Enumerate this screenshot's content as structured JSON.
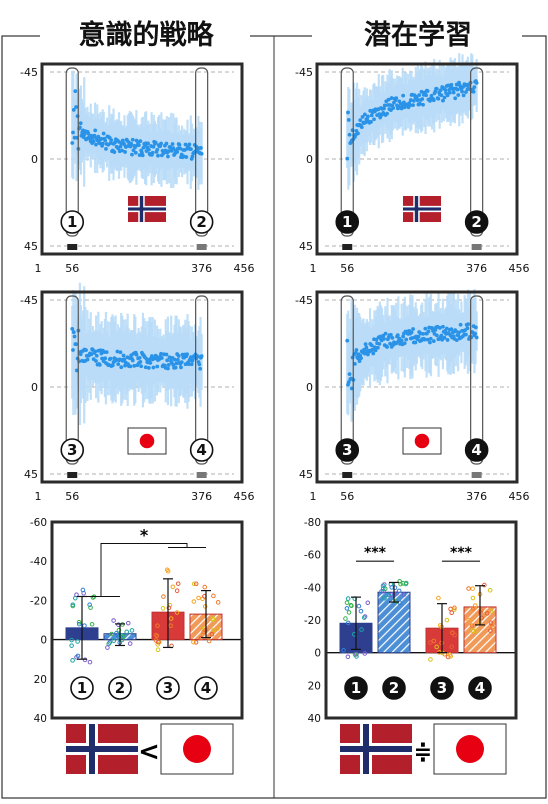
{
  "panels": {
    "left_title": "意識的戦略",
    "right_title": "潜在学習"
  },
  "colors": {
    "dot": "#2a93e8",
    "band": "#b9dcf7",
    "norway_bar": "#2f3f8f",
    "norway_hatch": "#6aa6df",
    "japan_bar": "#d83a3a",
    "japan_hatch": "#e8894a",
    "frame": "#2b2b2b",
    "grid": "#b0b0b0"
  },
  "symbols": {
    "less_than": "<",
    "approx_equal": "≑",
    "significance_left": "*",
    "significance_right_a": "***",
    "significance_right_b": "***"
  },
  "chart_data": [
    {
      "type": "scatter",
      "panel": "left-top",
      "flag": "norway",
      "xticks": [
        "1",
        "56",
        "376",
        "456"
      ],
      "yticks": [
        "-45",
        "0",
        "45"
      ],
      "xlim": [
        1,
        456
      ],
      "ylim": [
        45,
        -45
      ],
      "grid": "dashed-horizontal",
      "markers": [
        "①",
        "②"
      ],
      "series": [
        {
          "level_start": -18,
          "level_mid": -6,
          "level_end": -3,
          "band_halfwidth": 14
        }
      ]
    },
    {
      "type": "scatter",
      "panel": "right-top",
      "flag": "norway",
      "xticks": [
        "1",
        "56",
        "376",
        "456"
      ],
      "yticks": [
        "-45",
        "0",
        "45"
      ],
      "xlim": [
        1,
        456
      ],
      "ylim": [
        45,
        -45
      ],
      "grid": "dashed-horizontal",
      "markers": [
        "❶",
        "❷"
      ],
      "series": [
        {
          "level_start": -10,
          "level_mid": -30,
          "level_end": -38,
          "band_halfwidth": 14
        }
      ]
    },
    {
      "type": "scatter",
      "panel": "left-middle",
      "flag": "japan",
      "xticks": [
        "1",
        "56",
        "376",
        "456"
      ],
      "yticks": [
        "-45",
        "0",
        "45"
      ],
      "xlim": [
        1,
        456
      ],
      "ylim": [
        45,
        -45
      ],
      "grid": "dashed-horizontal",
      "markers": [
        "③",
        "④"
      ],
      "series": [
        {
          "level_start": -18,
          "level_mid": -14,
          "level_end": -13,
          "band_halfwidth": 18
        }
      ]
    },
    {
      "type": "scatter",
      "panel": "right-middle",
      "flag": "japan",
      "xticks": [
        "1",
        "56",
        "376",
        "456"
      ],
      "yticks": [
        "-45",
        "0",
        "45"
      ],
      "xlim": [
        1,
        456
      ],
      "ylim": [
        45,
        -45
      ],
      "grid": "dashed-horizontal",
      "markers": [
        "❸",
        "❹"
      ],
      "series": [
        {
          "level_start": -12,
          "level_mid": -26,
          "level_end": -29,
          "band_halfwidth": 16
        }
      ]
    },
    {
      "type": "bar",
      "panel": "left-bottom",
      "yticks": [
        "-60",
        "-40",
        "-20",
        "0",
        "20",
        "40"
      ],
      "ylim": [
        40,
        -60
      ],
      "categories": [
        "①",
        "②",
        "③",
        "④"
      ],
      "values": [
        -6,
        -3,
        -14,
        -13
      ],
      "errors": [
        [
          10,
          -22
        ],
        [
          3,
          -8
        ],
        [
          4,
          -31
        ],
        [
          -1,
          -25
        ]
      ],
      "significance": "*"
    },
    {
      "type": "bar",
      "panel": "right-bottom",
      "yticks": [
        "-80",
        "-60",
        "-40",
        "-20",
        "0",
        "20",
        "40"
      ],
      "ylim": [
        40,
        -80
      ],
      "categories": [
        "❶",
        "❷",
        "❸",
        "❹"
      ],
      "values": [
        -18,
        -37,
        -15,
        -28
      ],
      "errors": [
        [
          -2,
          -34
        ],
        [
          -31,
          -43
        ],
        [
          0,
          -30
        ],
        [
          -17,
          -41
        ]
      ],
      "significance": [
        "***",
        "***"
      ]
    }
  ]
}
